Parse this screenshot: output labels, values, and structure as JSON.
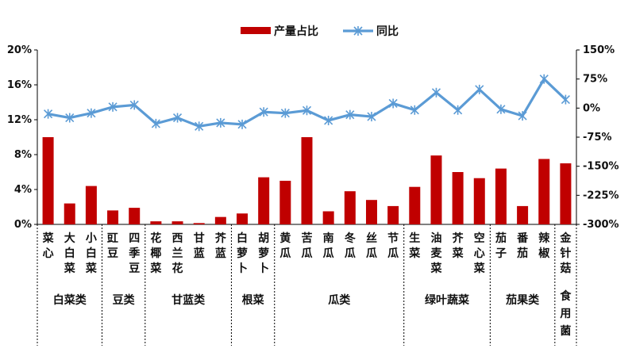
{
  "chart_data": {
    "type": "bar+line",
    "categories": [
      "菜心",
      "大白菜",
      "小白菜",
      "豇豆",
      "四季豆",
      "花椰菜",
      "西兰花",
      "甘蓝",
      "芥蓝",
      "白萝卜",
      "胡萝卜",
      "黄瓜",
      "苦瓜",
      "南瓜",
      "冬瓜",
      "丝瓜",
      "节瓜",
      "生菜",
      "油麦菜",
      "芥菜",
      "空心菜",
      "茄子",
      "番茄",
      "辣椒",
      "金针菇"
    ],
    "groups": [
      {
        "name": "白菜类",
        "members": [
          "菜心",
          "大白菜",
          "小白菜"
        ]
      },
      {
        "name": "豆类",
        "members": [
          "豇豆",
          "四季豆"
        ]
      },
      {
        "name": "甘蓝类",
        "members": [
          "花椰菜",
          "西兰花",
          "甘蓝",
          "芥蓝"
        ]
      },
      {
        "name": "根菜",
        "members": [
          "白萝卜",
          "胡萝卜"
        ]
      },
      {
        "name": "瓜类",
        "members": [
          "黄瓜",
          "苦瓜",
          "南瓜",
          "冬瓜",
          "丝瓜",
          "节瓜"
        ]
      },
      {
        "name": "绿叶蔬菜",
        "members": [
          "生菜",
          "油麦菜",
          "芥菜",
          "空心菜"
        ]
      },
      {
        "name": "茄果类",
        "members": [
          "茄子",
          "番茄",
          "辣椒"
        ]
      },
      {
        "name": "食用菌",
        "members": [
          "金针菇"
        ]
      }
    ],
    "series": [
      {
        "name": "产量占比",
        "type": "bar",
        "axis": "left",
        "color": "#c00000",
        "values": [
          10.0,
          2.4,
          4.4,
          1.6,
          1.9,
          0.35,
          0.35,
          0.15,
          0.85,
          1.25,
          5.4,
          5.0,
          10.0,
          1.5,
          3.8,
          2.8,
          2.1,
          4.3,
          7.9,
          6.0,
          5.3,
          6.4,
          2.1,
          7.5,
          7.0
        ]
      },
      {
        "name": "同比",
        "type": "line",
        "axis": "right",
        "color": "#5b9bd5",
        "values": [
          -15,
          -25,
          -13,
          3,
          8,
          -40,
          -25,
          -47,
          -38,
          -42,
          -10,
          -13,
          -6,
          -32,
          -17,
          -22,
          12,
          -5,
          40,
          -5,
          48,
          -3,
          -20,
          75,
          22
        ]
      }
    ],
    "y_left": {
      "ticks": [
        "0%",
        "4%",
        "8%",
        "12%",
        "16%",
        "20%"
      ],
      "ylim": [
        0,
        20
      ]
    },
    "y_right": {
      "ticks": [
        "150%",
        "75%",
        "0%",
        "-75%",
        "-150%",
        "-225%",
        "-300%"
      ],
      "ylim": [
        -300,
        150
      ]
    },
    "legend": {
      "position": "top-center",
      "items": [
        {
          "label": "产量占比",
          "swatch": "bar"
        },
        {
          "label": "同比",
          "swatch": "line"
        }
      ]
    }
  }
}
